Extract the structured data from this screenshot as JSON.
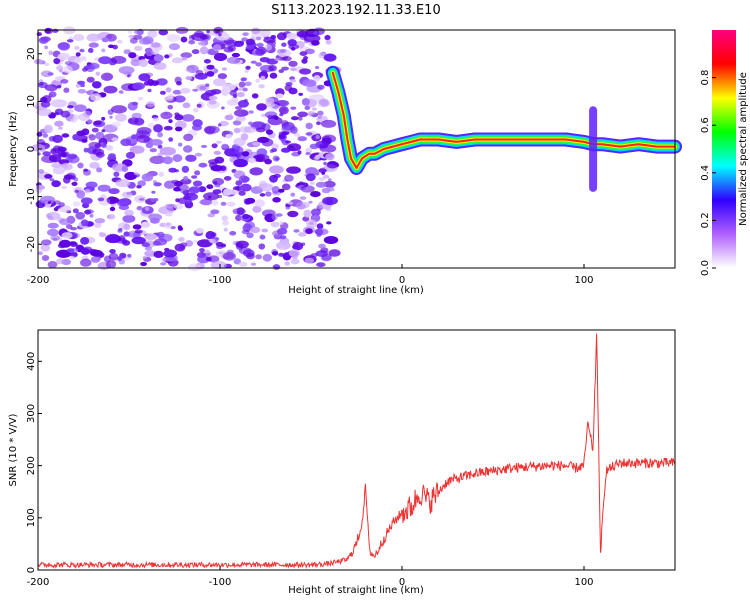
{
  "title": "S113.2023.192.11.33.E10",
  "chart_data": [
    {
      "type": "heatmap",
      "xlabel": "Height of straight line (km)",
      "ylabel": "Frequency (Hz)",
      "xlim": [
        -200,
        150
      ],
      "ylim": [
        -25,
        25
      ],
      "x_ticks": [
        -200,
        -100,
        0,
        100
      ],
      "y_ticks": [
        -20,
        -10,
        0,
        10,
        20
      ],
      "grid": false,
      "colorbar": {
        "label": "Normalized spectral amplitude",
        "range": [
          0,
          1
        ],
        "ticks": [
          0.0,
          0.2,
          0.4,
          0.6,
          0.8
        ],
        "colormap": [
          "#ffffff",
          "#b060ff",
          "#3000ff",
          "#00ffff",
          "#00ff00",
          "#ffff00",
          "#ff0000",
          "#ff0080"
        ]
      },
      "noise_region": {
        "x_range": [
          -200,
          -37
        ],
        "level": 0.2
      },
      "ridge": {
        "x": [
          -38,
          -35,
          -32,
          -30,
          -28,
          -25,
          -22,
          -18,
          -15,
          -10,
          -5,
          0,
          5,
          10,
          20,
          30,
          40,
          50,
          60,
          70,
          80,
          90,
          100,
          105,
          110,
          120,
          130,
          140,
          150
        ],
        "y": [
          16,
          12,
          7,
          2,
          -2,
          -4,
          -2,
          -1,
          -1,
          0,
          0.5,
          1,
          1.5,
          2,
          2,
          1.5,
          2,
          2,
          2,
          2,
          2,
          2,
          1.5,
          1,
          1,
          0.5,
          1,
          0.5,
          0.5
        ]
      }
    },
    {
      "type": "line",
      "xlabel": "Height of straight line (km)",
      "ylabel": "SNR (10 * V/V)",
      "xlim": [
        -200,
        150
      ],
      "ylim": [
        0,
        460
      ],
      "x_ticks": [
        -200,
        -100,
        0,
        100
      ],
      "y_ticks": [
        0,
        100,
        200,
        300,
        400
      ],
      "grid": false,
      "color": "#ee3333",
      "x": [
        -200,
        -175,
        -150,
        -125,
        -100,
        -75,
        -50,
        -40,
        -30,
        -25,
        -22,
        -20,
        -18,
        -15,
        -10,
        -5,
        0,
        5,
        10,
        15,
        20,
        25,
        30,
        40,
        50,
        60,
        70,
        80,
        90,
        95,
        100,
        102,
        105,
        107,
        109,
        112,
        120,
        130,
        140,
        150
      ],
      "y": [
        10,
        10,
        10,
        10,
        10,
        10,
        10,
        12,
        20,
        50,
        90,
        160,
        40,
        25,
        60,
        90,
        110,
        120,
        150,
        130,
        150,
        170,
        175,
        185,
        190,
        195,
        198,
        200,
        200,
        195,
        200,
        280,
        230,
        460,
        30,
        190,
        205,
        205,
        205,
        205
      ]
    }
  ]
}
